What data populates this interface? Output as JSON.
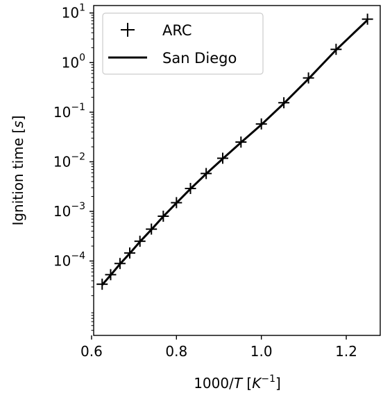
{
  "chart_data": {
    "type": "line",
    "x_label": "1000/T [K⁻¹]",
    "y_label": "Ignition time [s]",
    "y_scale": "log",
    "x_range": [
      0.605,
      1.28
    ],
    "y_range_log10": [
      -5.5,
      1.15
    ],
    "x_ticks": [
      {
        "value": 0.6,
        "label": "0.6"
      },
      {
        "value": 0.8,
        "label": "0.8"
      },
      {
        "value": 1.0,
        "label": "1.0"
      },
      {
        "value": 1.2,
        "label": "1.2"
      }
    ],
    "y_ticks": [
      {
        "exp": 1,
        "base": "10",
        "sup": "1"
      },
      {
        "exp": 0,
        "base": "10",
        "sup": "0"
      },
      {
        "exp": -1,
        "base": "10",
        "sup": "−1"
      },
      {
        "exp": -2,
        "base": "10",
        "sup": "−2"
      },
      {
        "exp": -3,
        "base": "10",
        "sup": "−3"
      },
      {
        "exp": -4,
        "base": "10",
        "sup": "−4"
      }
    ],
    "legend_position": "top-left",
    "grid": false,
    "series": [
      {
        "name": "ARC",
        "marker": "+",
        "color": "#000000",
        "x": [
          0.625,
          0.645,
          0.667,
          0.69,
          0.714,
          0.741,
          0.769,
          0.8,
          0.833,
          0.87,
          0.909,
          0.952,
          1.0,
          1.053,
          1.111,
          1.176,
          1.25
        ],
        "y": [
          3.4e-05,
          5.3e-05,
          8.9e-05,
          0.000145,
          0.00025,
          0.00044,
          0.0008,
          0.0015,
          0.0029,
          0.0058,
          0.0118,
          0.025,
          0.058,
          0.155,
          0.49,
          1.85,
          7.5
        ]
      },
      {
        "name": "San Diego",
        "line": "solid",
        "color": "#000000",
        "x": [
          0.625,
          0.645,
          0.667,
          0.69,
          0.714,
          0.741,
          0.769,
          0.8,
          0.833,
          0.87,
          0.909,
          0.952,
          1.0,
          1.053,
          1.111,
          1.176,
          1.25
        ],
        "y": [
          3.3e-05,
          5.2e-05,
          8.7e-05,
          0.000142,
          0.000245,
          0.00043,
          0.00079,
          0.00148,
          0.00285,
          0.0057,
          0.0115,
          0.0245,
          0.056,
          0.15,
          0.47,
          1.8,
          7.2
        ]
      }
    ]
  }
}
